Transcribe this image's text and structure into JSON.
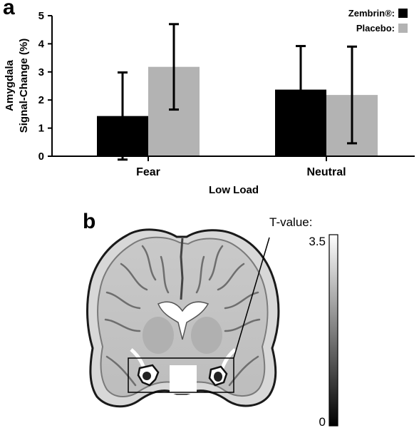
{
  "panel_a_label": "a",
  "panel_b_label": "b",
  "chart_data": {
    "type": "bar",
    "categories": [
      "Fear",
      "Neutral"
    ],
    "series": [
      {
        "name": "Zembrin®:",
        "values": [
          1.43,
          2.37
        ],
        "error": [
          1.55,
          1.55
        ],
        "color": "#000000"
      },
      {
        "name": "Placebo:",
        "values": [
          3.18,
          2.18
        ],
        "error": [
          1.52,
          1.72
        ],
        "color": "#b3b3b3"
      }
    ],
    "xlabel": "Low Load",
    "ylabel_line1": "Amygdala",
    "ylabel_line2": "Signal-Change (%)",
    "ylim": [
      0,
      5
    ],
    "yticks": [
      "0",
      "1",
      "2",
      "3",
      "4",
      "5"
    ],
    "legend_position": "top-right"
  },
  "colorbar": {
    "title": "T-value:",
    "max_label": "3.5",
    "min_label": "0"
  }
}
